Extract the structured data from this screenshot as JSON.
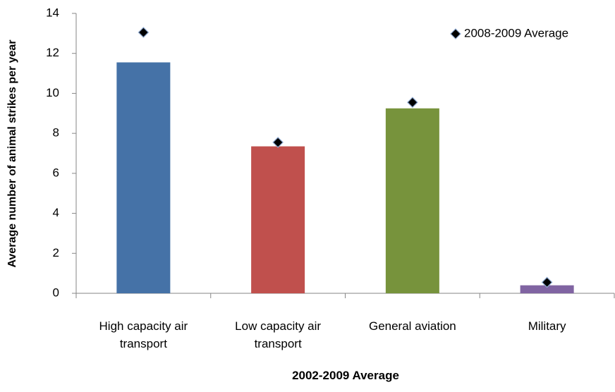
{
  "chart_data": {
    "type": "bar",
    "y_label": "Average number of animal strikes per year",
    "x_label": "2002-2009 Average",
    "categories": [
      "High capacity air transport",
      "Low capacity air transport",
      "General aviation",
      "Military"
    ],
    "values": [
      11.55,
      7.35,
      9.25,
      0.4
    ],
    "colors": [
      "#4572a7",
      "#c0504d",
      "#77933c",
      "#8064a2"
    ],
    "series": [
      {
        "name": "2008-2009 Average",
        "color": "#000000",
        "values": [
          13.05,
          7.55,
          9.55,
          0.55
        ]
      }
    ],
    "ylim": [
      0,
      14
    ],
    "yticks": [
      0,
      2,
      4,
      6,
      8,
      10,
      12,
      14
    ],
    "legend": "top-right"
  }
}
